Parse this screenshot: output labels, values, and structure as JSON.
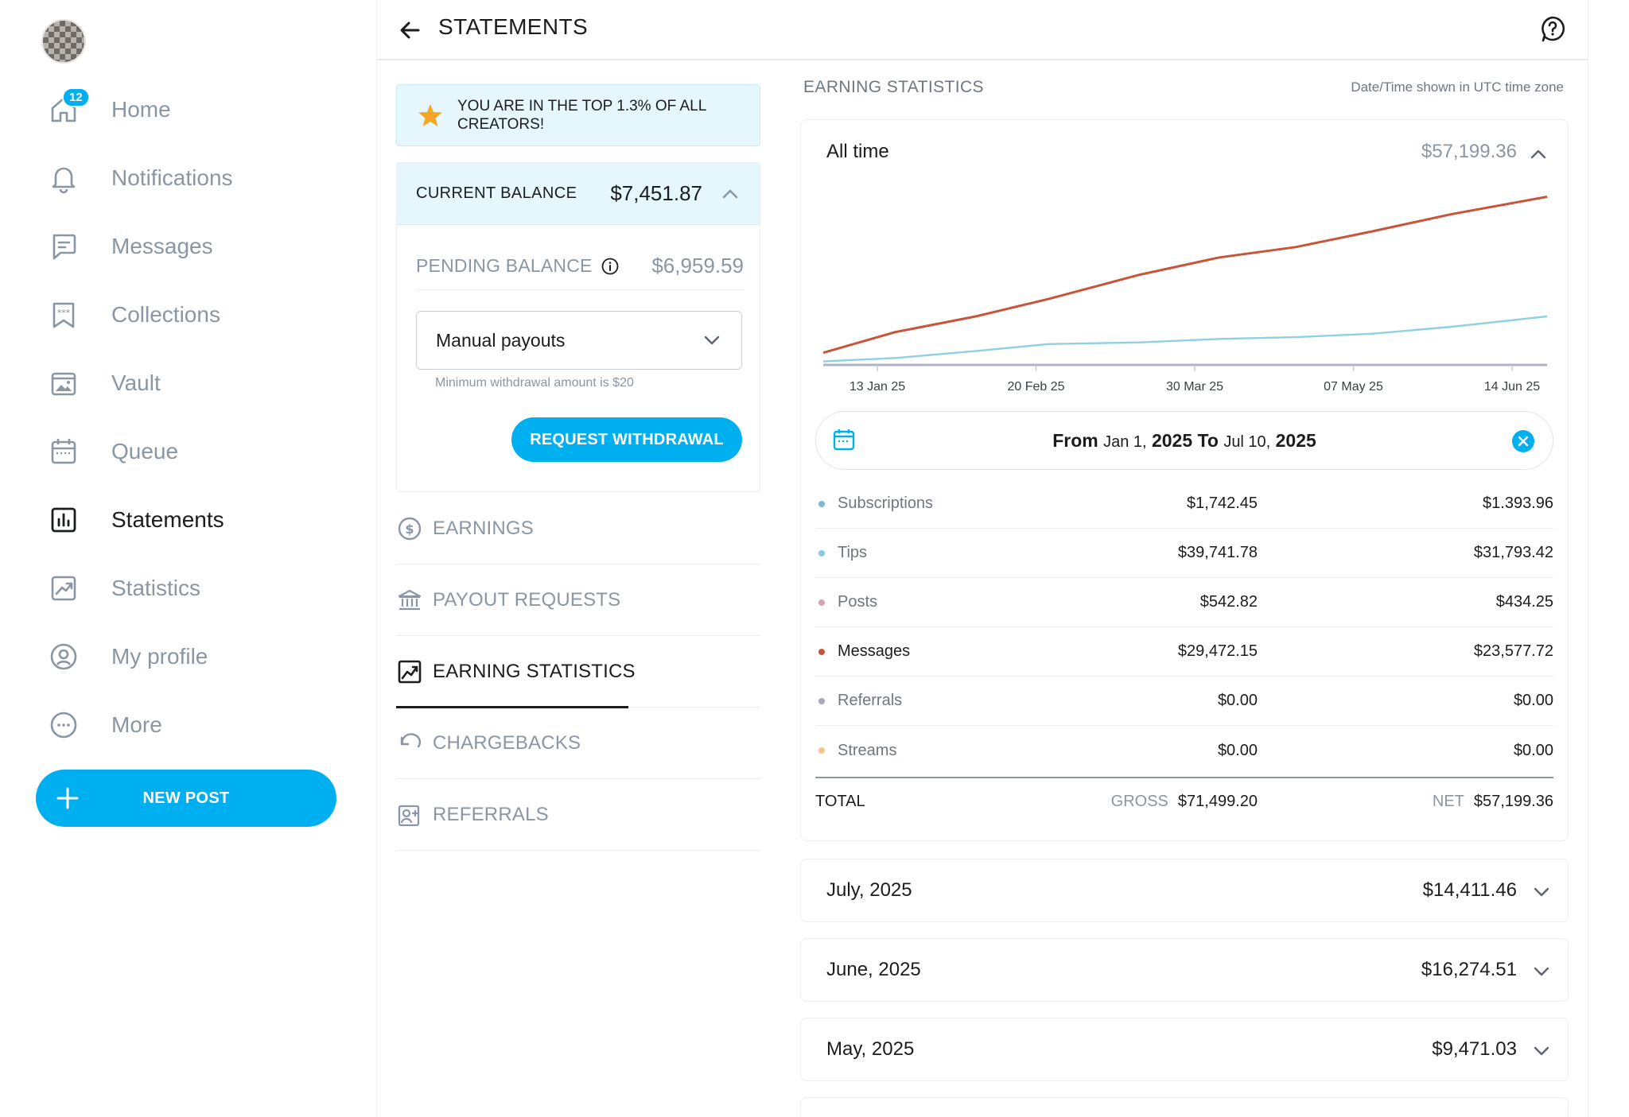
{
  "sidebar": {
    "notification_count": "12",
    "items": [
      {
        "label": "Home",
        "icon": "home-icon"
      },
      {
        "label": "Notifications",
        "icon": "bell-icon"
      },
      {
        "label": "Messages",
        "icon": "message-icon"
      },
      {
        "label": "Collections",
        "icon": "bookmark-stars-icon"
      },
      {
        "label": "Vault",
        "icon": "image-folder-icon"
      },
      {
        "label": "Queue",
        "icon": "calendar-icon"
      },
      {
        "label": "Statements",
        "icon": "bar-chart-icon",
        "active": true
      },
      {
        "label": "Statistics",
        "icon": "trend-chart-icon"
      },
      {
        "label": "My profile",
        "icon": "user-circle-icon"
      },
      {
        "label": "More",
        "icon": "more-dots-icon"
      }
    ],
    "new_post_label": "NEW POST"
  },
  "header": {
    "title": "STATEMENTS"
  },
  "balance": {
    "banner": "YOU ARE IN THE TOP 1.3% OF ALL CREATORS!",
    "current_label": "CURRENT BALANCE",
    "current_value": "$7,451.87",
    "pending_label": "PENDING BALANCE",
    "pending_value": "$6,959.59",
    "payout_mode": "Manual payouts",
    "min_note": "Minimum withdrawal amount is $20",
    "withdraw_label": "REQUEST WITHDRAWAL"
  },
  "menu": [
    {
      "label": "EARNINGS",
      "icon": "dollar-circle-icon"
    },
    {
      "label": "PAYOUT REQUESTS",
      "icon": "bank-icon"
    },
    {
      "label": "EARNING STATISTICS",
      "icon": "trend-chart-icon",
      "active": true
    },
    {
      "label": "CHARGEBACKS",
      "icon": "undo-icon"
    },
    {
      "label": "REFERRALS",
      "icon": "user-card-icon"
    }
  ],
  "stats": {
    "heading": "EARNING STATISTICS",
    "tz_note": "Date/Time shown in UTC time zone",
    "period_label": "All time",
    "period_value": "$57,199.36",
    "range": {
      "from_word": "From",
      "from_date": "Jan 1,",
      "from_year": "2025",
      "to_word": "To",
      "to_date": "Jul 10,",
      "to_year": "2025"
    },
    "sources": [
      {
        "name": "Subscriptions",
        "gross": "$1,742.45",
        "net": "$1.393.96",
        "color": "#7fb8d8"
      },
      {
        "name": "Tips",
        "gross": "$39,741.78",
        "net": "$31,793.42",
        "color": "#86c9e3"
      },
      {
        "name": "Posts",
        "gross": "$542.82",
        "net": "$434.25",
        "color": "#d9a0b0"
      },
      {
        "name": "Messages",
        "gross": "$29,472.15",
        "net": "$23,577.72",
        "color": "#c8553a"
      },
      {
        "name": "Referrals",
        "gross": "$0.00",
        "net": "$0.00",
        "color": "#a9a6c6"
      },
      {
        "name": "Streams",
        "gross": "$0.00",
        "net": "$0.00",
        "color": "#f0c98a"
      }
    ],
    "total_label": "TOTAL",
    "gross_label": "GROSS",
    "gross_total": "$71,499.20",
    "net_label": "NET",
    "net_total": "$57,199.36"
  },
  "months": [
    {
      "label": "July, 2025",
      "value": "$14,411.46"
    },
    {
      "label": "June, 2025",
      "value": "$16,274.51"
    },
    {
      "label": "May, 2025",
      "value": "$9,471.03"
    }
  ],
  "chart_data": {
    "type": "line",
    "x_ticks": [
      "13 Jan 25",
      "20 Feb 25",
      "30 Mar 25",
      "07 May 25",
      "14 Jun 25"
    ],
    "x": [
      "2025-01-01",
      "2025-01-20",
      "2025-02-10",
      "2025-03-01",
      "2025-03-25",
      "2025-04-15",
      "2025-05-05",
      "2025-05-25",
      "2025-06-15",
      "2025-07-10"
    ],
    "ylim": [
      0,
      1
    ],
    "series": [
      {
        "values": [
          0.07,
          0.19,
          0.28,
          0.38,
          0.52,
          0.62,
          0.68,
          0.77,
          0.87,
          0.97
        ],
        "color": "#c8553a"
      },
      {
        "values": [
          0.02,
          0.04,
          0.08,
          0.12,
          0.13,
          0.15,
          0.16,
          0.18,
          0.22,
          0.28
        ],
        "color": "#8fd0e3"
      },
      {
        "values": [
          0.0,
          0.0,
          0.0,
          0.0,
          0.0,
          0.0,
          0.0,
          0.0,
          0.0,
          0.0
        ],
        "color": "#6f6a9a"
      }
    ]
  }
}
